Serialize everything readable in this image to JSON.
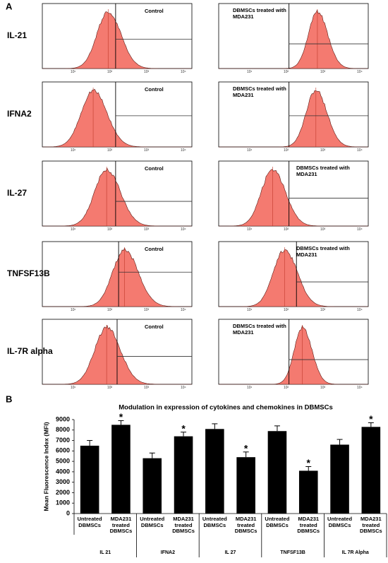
{
  "panel_a": {
    "label": "A",
    "rows": [
      {
        "label": "IL-21",
        "control": "Control",
        "treated": "DBMSCs treated with MDA231"
      },
      {
        "label": "IFNA2",
        "control": "Control",
        "treated": "DBMSCs treated with MDA231"
      },
      {
        "label": "IL-27",
        "control": "Control",
        "treated": "DBMSCs treated with MDA231"
      },
      {
        "label": "TNFSF13B",
        "control": "Control",
        "treated": "DBMSCs treated with MDA231"
      },
      {
        "label": "IL-7R alpha",
        "control": "Control",
        "treated": "DBMSCs treated with MDA231"
      }
    ],
    "xtick_labels": [
      "10¹",
      "10²",
      "10³",
      "10⁴"
    ]
  },
  "chart_data": {
    "type": "bar",
    "panel_label": "B",
    "title": "Modulation in expression of cytokines and chemokines in DBMSCs",
    "y_label": "Mean Fluorescence Index (MFI)",
    "categories": [
      "Untreated DBMSCs",
      "MDA231 treated DBMSCs",
      "Untreated DBMSCs",
      "MDA231 treated DBMSCs",
      "Untreated DBMSCs",
      "MDA231 treated DBMSCs",
      "Untreated DBMSCs",
      "MDA231 treated DBMSCs",
      "Untreated DBMSCs",
      "MDA231 treated DBMSCs"
    ],
    "groups": [
      "IL 21",
      "IFNA2",
      "IL 27",
      "TNFSF13B",
      "IL 7R Alpha"
    ],
    "values": [
      6500,
      8500,
      5300,
      7400,
      8100,
      5400,
      7900,
      4100,
      6600,
      8300
    ],
    "errors": [
      500,
      400,
      500,
      400,
      500,
      500,
      500,
      400,
      500,
      400
    ],
    "annotations": [
      {
        "index": 1,
        "text": "*"
      },
      {
        "index": 3,
        "text": "*"
      },
      {
        "index": 5,
        "text": "*"
      },
      {
        "index": 7,
        "text": "*"
      },
      {
        "index": 9,
        "text": "*"
      }
    ],
    "color": "#000000",
    "ylim": [
      0,
      9000
    ],
    "yticks": [
      0,
      1000,
      2000,
      3000,
      4000,
      5000,
      6000,
      7000,
      8000,
      9000
    ]
  }
}
